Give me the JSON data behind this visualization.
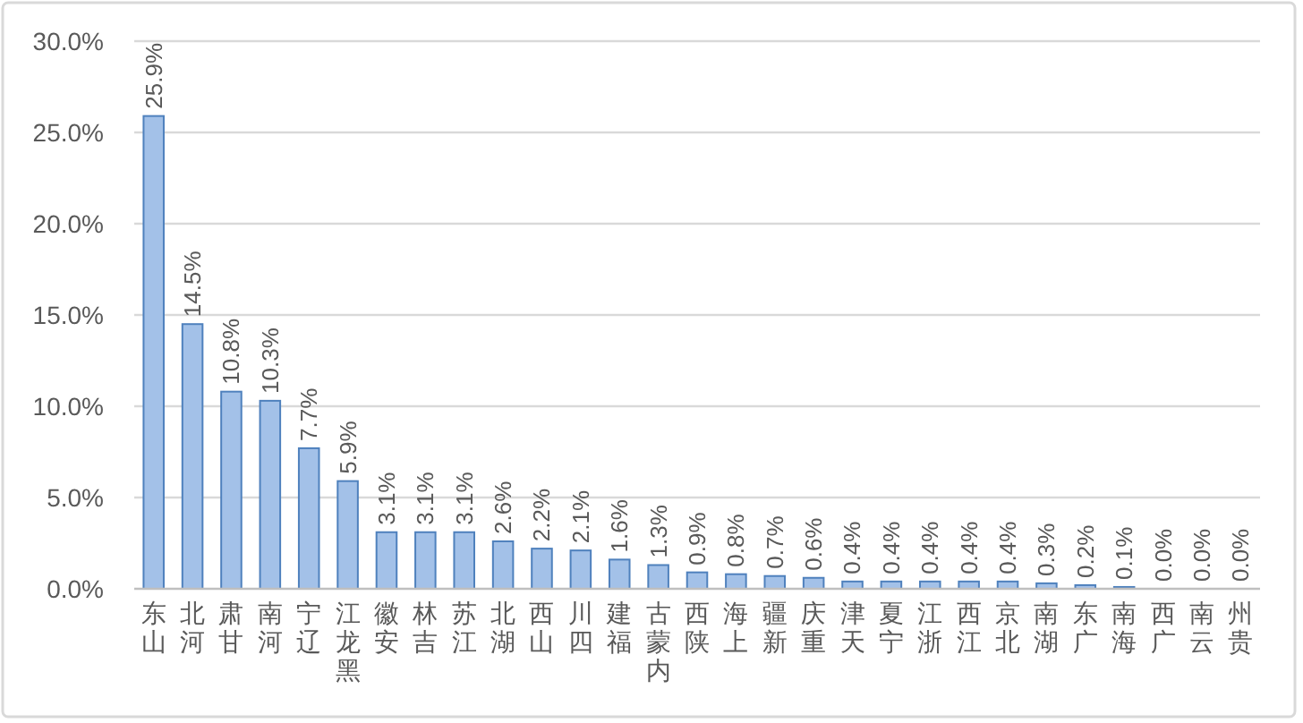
{
  "chart_data": {
    "type": "bar",
    "categories": [
      "山东",
      "河北",
      "甘肃",
      "河南",
      "辽宁",
      "黑龙江",
      "安徽",
      "吉林",
      "江苏",
      "湖北",
      "山西",
      "四川",
      "福建",
      "内蒙古",
      "陕西",
      "上海",
      "新疆",
      "重庆",
      "天津",
      "宁夏",
      "浙江",
      "江西",
      "北京",
      "湖南",
      "广东",
      "海南",
      "广西",
      "云南",
      "贵州"
    ],
    "values": [
      25.9,
      14.5,
      10.8,
      10.3,
      7.7,
      5.9,
      3.1,
      3.1,
      3.1,
      2.6,
      2.2,
      2.1,
      1.6,
      1.3,
      0.9,
      0.8,
      0.7,
      0.6,
      0.4,
      0.4,
      0.4,
      0.4,
      0.4,
      0.3,
      0.2,
      0.1,
      0.0,
      0.0,
      0.0
    ],
    "value_labels": [
      "25.9%",
      "14.5%",
      "10.8%",
      "10.3%",
      "7.7%",
      "5.9%",
      "3.1%",
      "3.1%",
      "3.1%",
      "2.6%",
      "2.2%",
      "2.1%",
      "1.6%",
      "1.3%",
      "0.9%",
      "0.8%",
      "0.7%",
      "0.6%",
      "0.4%",
      "0.4%",
      "0.4%",
      "0.4%",
      "0.4%",
      "0.3%",
      "0.2%",
      "0.1%",
      "0.0%",
      "0.0%",
      "0.0%"
    ],
    "color": "#a3c1e8",
    "ylim": [
      0,
      30
    ],
    "yticks": [
      {
        "value": 0,
        "label": "0.0%"
      },
      {
        "value": 5,
        "label": "5.0%"
      },
      {
        "value": 10,
        "label": "10.0%"
      },
      {
        "value": 15,
        "label": "15.0%"
      },
      {
        "value": 20,
        "label": "20.0%"
      },
      {
        "value": 25,
        "label": "25.0%"
      },
      {
        "value": 30,
        "label": "30.0%"
      }
    ],
    "grid": "y"
  }
}
